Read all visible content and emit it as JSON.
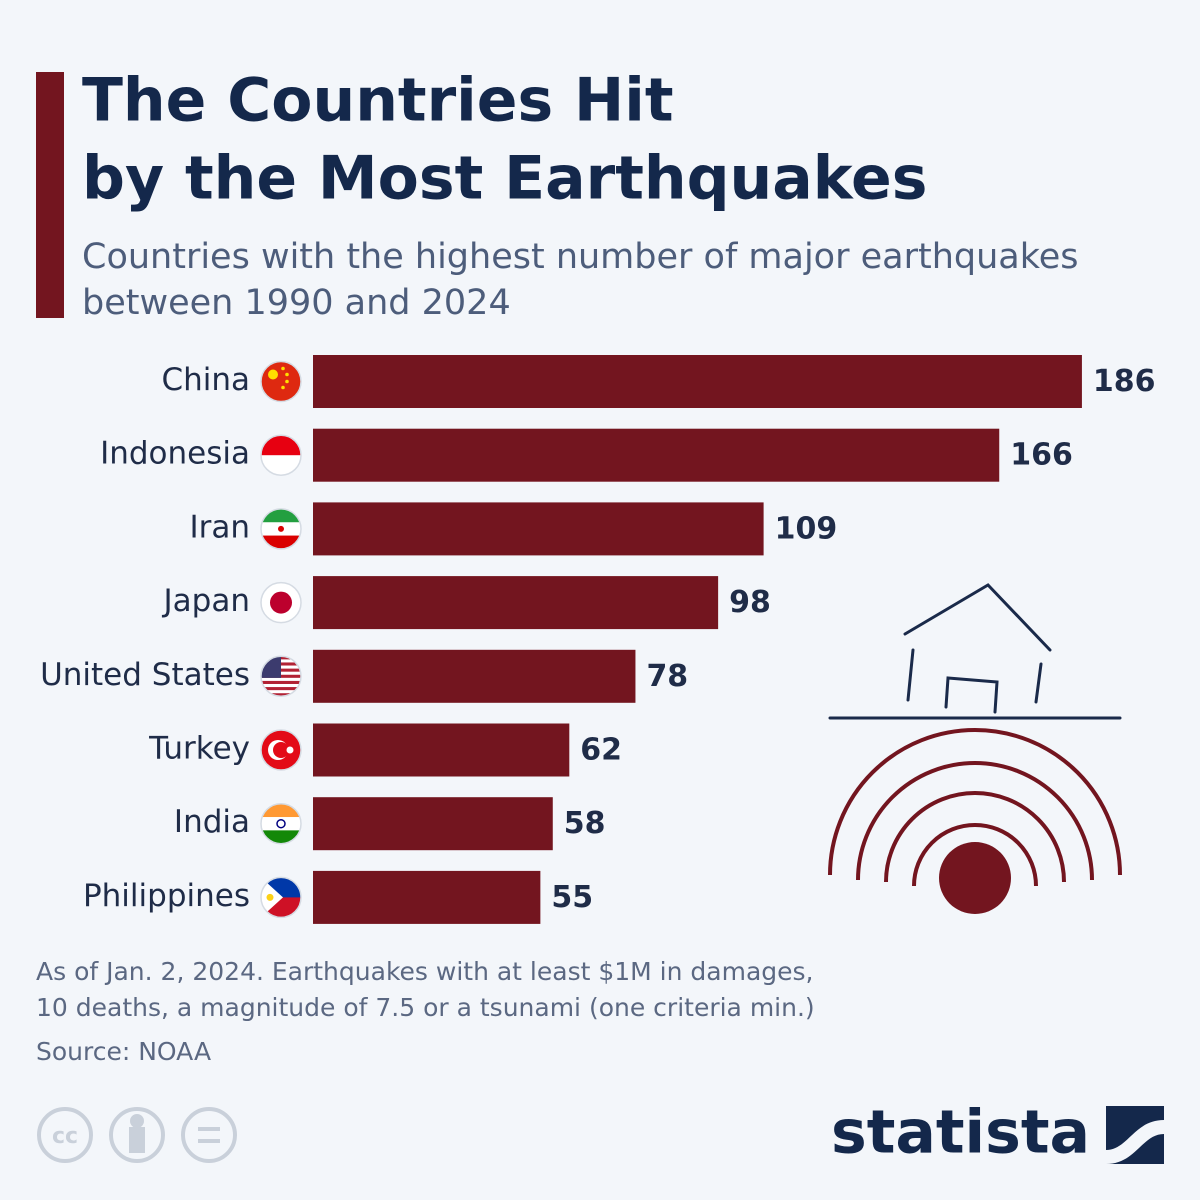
{
  "chart_data": {
    "type": "bar",
    "orientation": "horizontal",
    "title": [
      "The Countries Hit",
      "by the Most Earthquakes"
    ],
    "subtitle": [
      "Countries with the highest number of major earthquakes",
      "between 1990 and 2024"
    ],
    "categories": [
      "China",
      "Indonesia",
      "Iran",
      "Japan",
      "United States",
      "Turkey",
      "India",
      "Philippines"
    ],
    "values": [
      186,
      166,
      109,
      98,
      78,
      62,
      58,
      55
    ],
    "color": "#73151f",
    "note": [
      "As of Jan. 2, 2024. Earthquakes with at least $1M in damages,",
      "10 deaths, a magnitude of 7.5 or a tsunami (one criteria min.)"
    ],
    "source": "Source: NOAA",
    "license": "cc",
    "brand": "statista"
  }
}
